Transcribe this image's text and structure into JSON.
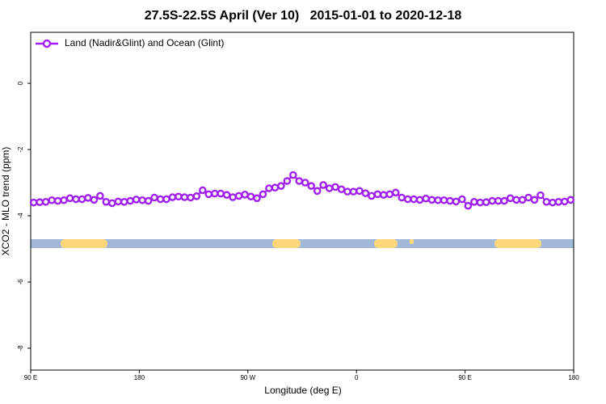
{
  "chart_data": {
    "type": "line",
    "title": "27.5S-22.5S April (Ver 10)   2015-01-01 to 2020-12-18",
    "xlabel": "Longitude (deg E)",
    "ylabel": "XCO2 - MLO trend (ppm)",
    "xlim": [
      90,
      540
    ],
    "ylim": [
      -8.66,
      1.54
    ],
    "xticks": [
      {
        "value": 90,
        "label": "90 E"
      },
      {
        "value": 180,
        "label": "180"
      },
      {
        "value": 270,
        "label": "90 W"
      },
      {
        "value": 360,
        "label": "0"
      },
      {
        "value": 450,
        "label": "90 E"
      },
      {
        "value": 540,
        "label": "180"
      }
    ],
    "yticks": [
      -8,
      -6,
      -4,
      -2,
      0
    ],
    "legend": "top-left",
    "x": [
      92.5,
      97.5,
      102.5,
      107.5,
      112.5,
      117.5,
      122.5,
      127.5,
      132.5,
      137.5,
      142.5,
      147.5,
      152.5,
      157.5,
      162.5,
      167.5,
      172.5,
      177.5,
      182.5,
      187.5,
      192.5,
      197.5,
      202.5,
      207.5,
      212.5,
      217.5,
      222.5,
      227.5,
      232.5,
      237.5,
      242.5,
      247.5,
      252.5,
      257.5,
      262.5,
      267.5,
      272.5,
      277.5,
      282.5,
      287.5,
      292.5,
      297.5,
      302.5,
      307.5,
      312.5,
      317.5,
      322.5,
      327.5,
      332.5,
      337.5,
      342.5,
      347.5,
      352.5,
      357.5,
      362.5,
      367.5,
      372.5,
      377.5,
      382.5,
      387.5,
      392.5,
      397.5,
      402.5,
      407.5,
      412.5,
      417.5,
      422.5,
      427.5,
      432.5,
      437.5,
      442.5,
      447.5,
      452.5,
      457.5,
      462.5,
      467.5,
      472.5,
      477.5,
      482.5,
      487.5,
      492.5,
      497.5,
      502.5,
      507.5,
      512.5,
      517.5,
      522.5,
      527.5,
      532.5,
      537.5
    ],
    "series": [
      {
        "name": "Land (Nadir&Glint) and Ocean (Glint)",
        "color": "#a020f0",
        "values": [
          -3.6,
          -3.59,
          -3.58,
          -3.53,
          -3.55,
          -3.53,
          -3.47,
          -3.5,
          -3.5,
          -3.46,
          -3.52,
          -3.4,
          -3.58,
          -3.62,
          -3.57,
          -3.58,
          -3.55,
          -3.51,
          -3.53,
          -3.55,
          -3.45,
          -3.5,
          -3.5,
          -3.44,
          -3.42,
          -3.44,
          -3.45,
          -3.41,
          -3.23,
          -3.35,
          -3.33,
          -3.33,
          -3.37,
          -3.44,
          -3.4,
          -3.36,
          -3.42,
          -3.47,
          -3.35,
          -3.17,
          -3.15,
          -3.1,
          -2.95,
          -2.77,
          -2.95,
          -3.0,
          -3.1,
          -3.25,
          -3.07,
          -3.17,
          -3.13,
          -3.2,
          -3.27,
          -3.27,
          -3.25,
          -3.32,
          -3.4,
          -3.35,
          -3.37,
          -3.35,
          -3.3,
          -3.45,
          -3.5,
          -3.5,
          -3.52,
          -3.48,
          -3.52,
          -3.53,
          -3.53,
          -3.55,
          -3.57,
          -3.5,
          -3.7,
          -3.58,
          -3.6,
          -3.59,
          -3.55,
          -3.55,
          -3.55,
          -3.47,
          -3.52,
          -3.52,
          -3.45,
          -3.52,
          -3.38,
          -3.58,
          -3.6,
          -3.58,
          -3.57,
          -3.52
        ]
      }
    ]
  }
}
